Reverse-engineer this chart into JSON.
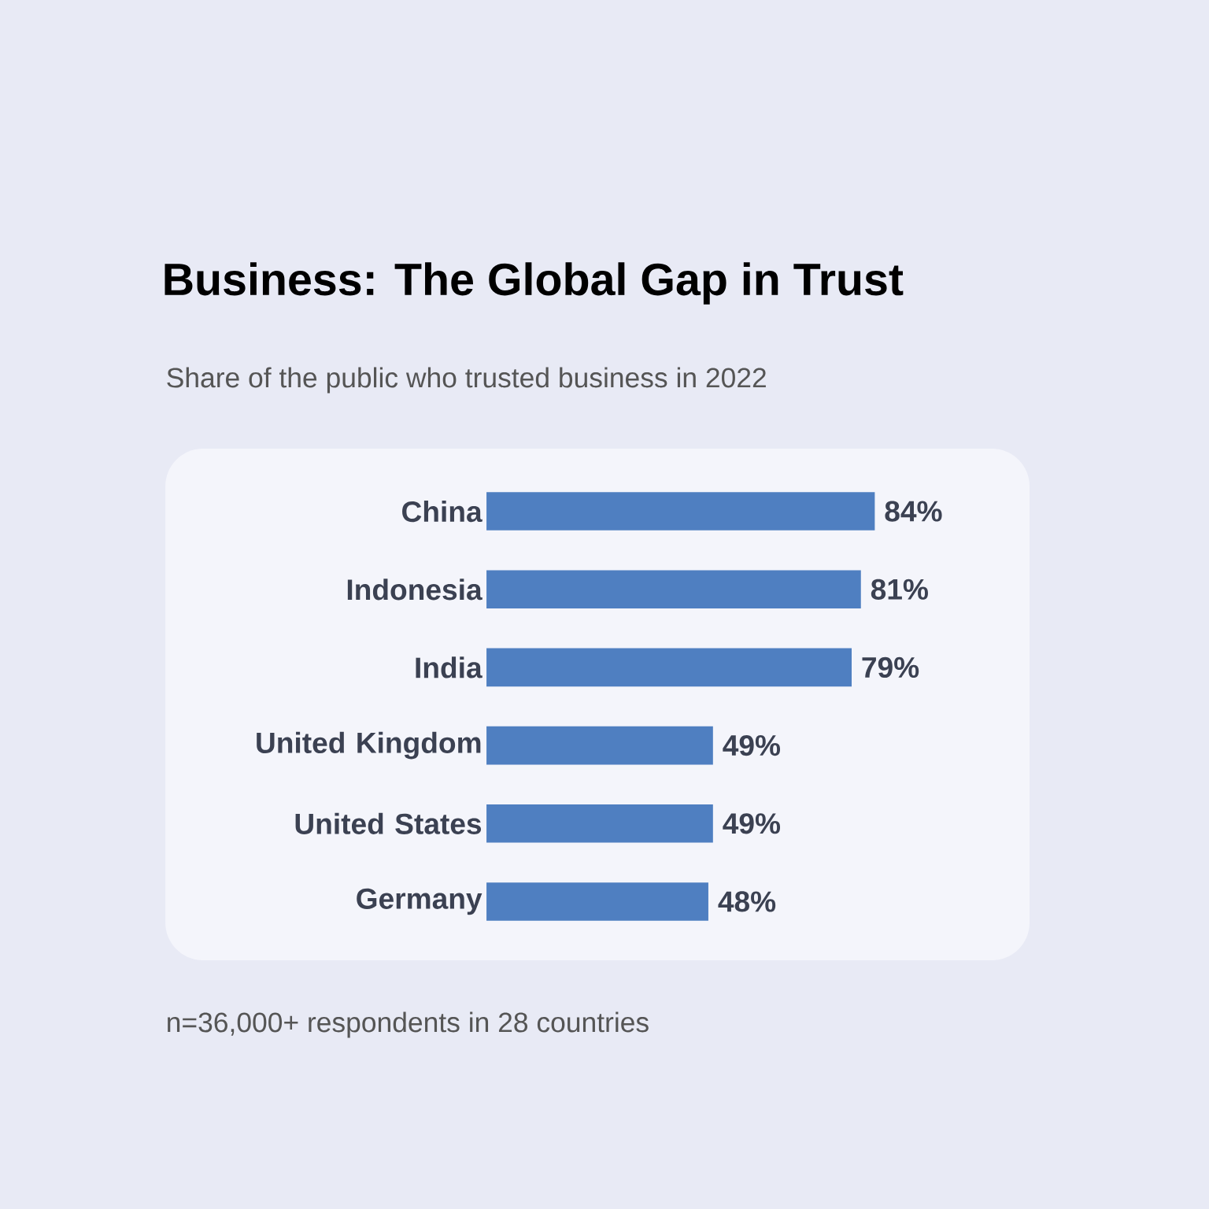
{
  "chart_data": {
    "type": "bar",
    "orientation": "horizontal",
    "title": "Business: The Global Gap in Trust",
    "subtitle": "Share of the public who trusted business in 2022",
    "categories": [
      "China",
      "Indonesia",
      "India",
      "United Kingdom",
      "United States",
      "Germany"
    ],
    "values": [
      84,
      81,
      79,
      49,
      49,
      48
    ],
    "value_labels": [
      "84%",
      "81%",
      "79%",
      "49%",
      "49%",
      "48%"
    ],
    "color": "#4f7fc1",
    "annotations": [
      "n=36,000+ respondents in 28 countries"
    ]
  }
}
